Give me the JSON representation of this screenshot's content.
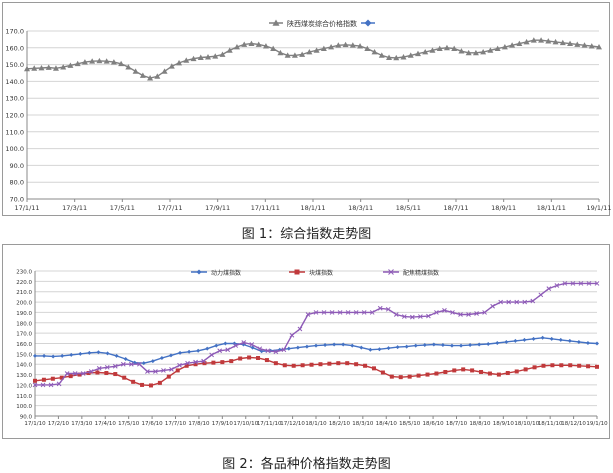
{
  "chart_data": [
    {
      "type": "line",
      "caption": "图 1：综合指数走势图",
      "legend_position": "top-center",
      "grid": true,
      "ylim": [
        70,
        170
      ],
      "yticks": [
        "70.0",
        "80.0",
        "90.0",
        "100.0",
        "110.0",
        "120.0",
        "130.0",
        "140.0",
        "150.0",
        "160.0",
        "170.0"
      ],
      "xticks": [
        "17/1/11",
        "17/3/11",
        "17/5/11",
        "17/7/11",
        "17/9/11",
        "17/11/11",
        "18/1/11",
        "18/3/11",
        "18/5/11",
        "18/7/11",
        "18/9/11",
        "18/11/11",
        "19/1/11"
      ],
      "series": [
        {
          "name": "陕西煤炭综合价格指数",
          "color": "#808080",
          "marker": "triangle",
          "values": [
            147.5,
            147.8,
            148.0,
            148.3,
            147.8,
            148.5,
            149.5,
            150.5,
            151.5,
            152.0,
            152.2,
            152.0,
            151.5,
            150.5,
            148.5,
            146.0,
            143.5,
            142.0,
            143.0,
            146.0,
            149.0,
            151.0,
            152.5,
            153.5,
            154.2,
            154.5,
            155.0,
            156.0,
            158.5,
            160.5,
            162.0,
            162.5,
            162.0,
            161.0,
            159.5,
            157.0,
            155.5,
            155.5,
            156.0,
            157.5,
            158.5,
            159.5,
            160.5,
            161.5,
            161.8,
            161.5,
            161.0,
            159.5,
            157.5,
            155.5,
            154.2,
            154.0,
            154.5,
            155.5,
            156.5,
            157.5,
            158.5,
            159.5,
            160.0,
            159.5,
            158.0,
            157.0,
            157.0,
            157.5,
            158.5,
            159.5,
            160.5,
            161.5,
            162.5,
            163.5,
            164.5,
            164.5,
            164.0,
            163.5,
            163.0,
            162.5,
            162.0,
            161.5,
            161.0,
            160.5
          ]
        },
        {
          "name": "",
          "color": "#4472c4",
          "marker": "diamond",
          "values": []
        }
      ]
    },
    {
      "type": "line",
      "caption": "图 2：各品种价格指数走势图",
      "legend_position": "top",
      "grid": true,
      "ylim": [
        90,
        230
      ],
      "yticks": [
        "90.0",
        "100.0",
        "110.0",
        "120.0",
        "130.0",
        "140.0",
        "150.0",
        "160.0",
        "170.0",
        "180.0",
        "190.0",
        "200.0",
        "210.0",
        "220.0",
        "230.0"
      ],
      "xticks": [
        "17/1/10",
        "17/2/10",
        "17/3/10",
        "17/4/10",
        "17/5/10",
        "17/6/10",
        "17/7/10",
        "17/8/10",
        "17/9/10",
        "17/10/10",
        "17/11/10",
        "17/12/10",
        "18/1/10",
        "18/2/10",
        "18/3/10",
        "18/4/10",
        "18/5/10",
        "18/6/10",
        "18/7/10",
        "18/8/10",
        "18/9/10",
        "18/10/10",
        "18/11/10",
        "18/12/10",
        "19/1/10"
      ],
      "series": [
        {
          "name": "动力煤指数",
          "color": "#4472c4",
          "marker": "diamond",
          "values": [
            148,
            148,
            147.5,
            148,
            149,
            150,
            151,
            151.5,
            150.5,
            148,
            145,
            141.5,
            141,
            143,
            146,
            148.5,
            151,
            152,
            153,
            155,
            158,
            160,
            160,
            159,
            156,
            152.5,
            153,
            154,
            155,
            156,
            157,
            158,
            158.5,
            159,
            159,
            158,
            156,
            154,
            154.5,
            155.5,
            156.5,
            157,
            158,
            158.5,
            159,
            158.5,
            158,
            158,
            158.5,
            159,
            159.5,
            160.5,
            161.5,
            162.5,
            163.5,
            164.5,
            165.5,
            164.5,
            163.5,
            162.5,
            161.5,
            160.5,
            160
          ]
        },
        {
          "name": "块煤指数",
          "color": "#c0393b",
          "marker": "square",
          "values": [
            124,
            125,
            126,
            127,
            128.5,
            130,
            131.5,
            132,
            131.5,
            130.5,
            127,
            123,
            120,
            119.5,
            122,
            128,
            134,
            138.5,
            140,
            141,
            141.5,
            142,
            143,
            145.5,
            146.5,
            146,
            144,
            141,
            139,
            138.5,
            139,
            139.5,
            140,
            140.5,
            141,
            141,
            140,
            138.5,
            136,
            132,
            128,
            127.5,
            128,
            129,
            130,
            131,
            132.5,
            134,
            135,
            134,
            132.5,
            131,
            130,
            131.5,
            133,
            135,
            137,
            138.5,
            139,
            139,
            139,
            138.5,
            138,
            137.5
          ]
        },
        {
          "name": "配焦精煤指数",
          "color": "#8e5bb7",
          "marker": "x",
          "values": [
            120,
            120,
            120,
            121,
            131,
            131,
            131,
            133,
            136,
            137,
            138,
            140,
            140,
            140,
            133,
            133,
            134,
            135,
            139,
            141,
            142,
            143,
            149,
            153,
            154,
            158,
            161,
            159,
            155,
            153,
            152,
            154,
            168,
            174,
            188,
            190,
            190,
            190,
            190,
            190,
            190,
            190,
            190,
            194,
            193,
            188,
            186,
            185.5,
            186,
            186.5,
            190,
            192,
            190,
            188,
            188,
            189,
            190,
            196,
            200,
            200,
            200,
            200,
            201,
            207,
            213,
            216,
            218,
            218,
            218,
            218,
            218
          ]
        }
      ]
    }
  ]
}
